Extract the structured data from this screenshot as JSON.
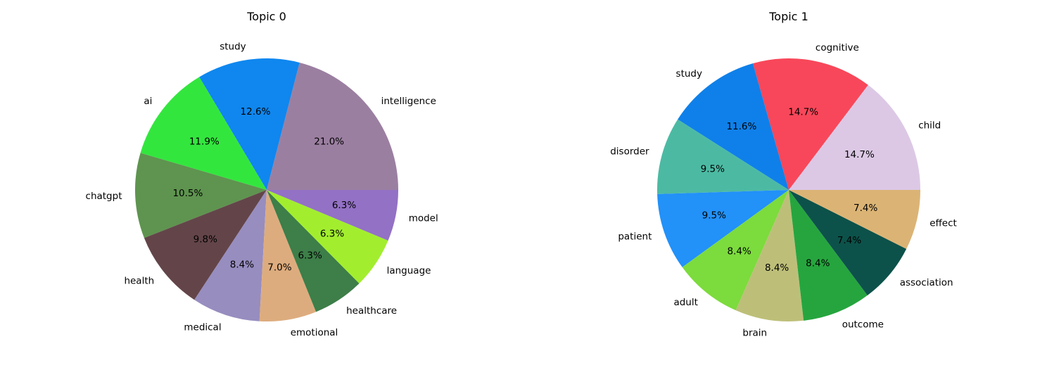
{
  "chart_data": [
    {
      "type": "pie",
      "title": "Topic 0",
      "labels": [
        "intelligence",
        "study",
        "ai",
        "chatgpt",
        "health",
        "medical",
        "emotional",
        "healthcare",
        "language",
        "model"
      ],
      "values": [
        21.0,
        12.6,
        11.9,
        10.5,
        9.8,
        8.4,
        7.0,
        6.3,
        6.3,
        6.3
      ],
      "percent_labels": [
        "21.0%",
        "12.6%",
        "11.9%",
        "10.5%",
        "9.8%",
        "8.4%",
        "7.0%",
        "6.3%",
        "6.3%",
        "6.3%"
      ],
      "colors": [
        "#9b7fa1",
        "#0f87ef",
        "#33e63e",
        "#5e944f",
        "#634549",
        "#978dbf",
        "#ddac7e",
        "#3d7e49",
        "#a2ee2e",
        "#9371c5"
      ],
      "start_angle_deg": 0,
      "direction": "counterclockwise"
    },
    {
      "type": "pie",
      "title": "Topic 1",
      "labels": [
        "child",
        "cognitive",
        "study",
        "disorder",
        "patient",
        "adult",
        "brain",
        "outcome",
        "association",
        "effect"
      ],
      "values": [
        14.7,
        14.7,
        11.6,
        9.5,
        9.5,
        8.4,
        8.4,
        8.4,
        7.4,
        7.4
      ],
      "percent_labels": [
        "14.7%",
        "14.7%",
        "11.6%",
        "9.5%",
        "9.5%",
        "8.4%",
        "8.4%",
        "8.4%",
        "7.4%",
        "7.4%"
      ],
      "colors": [
        "#dcc8e5",
        "#f8475a",
        "#0f80e9",
        "#4cbaa3",
        "#2291f8",
        "#7cdb3d",
        "#bdbf79",
        "#26a53e",
        "#0c524a",
        "#dbb475"
      ],
      "start_angle_deg": 0,
      "direction": "counterclockwise"
    }
  ]
}
